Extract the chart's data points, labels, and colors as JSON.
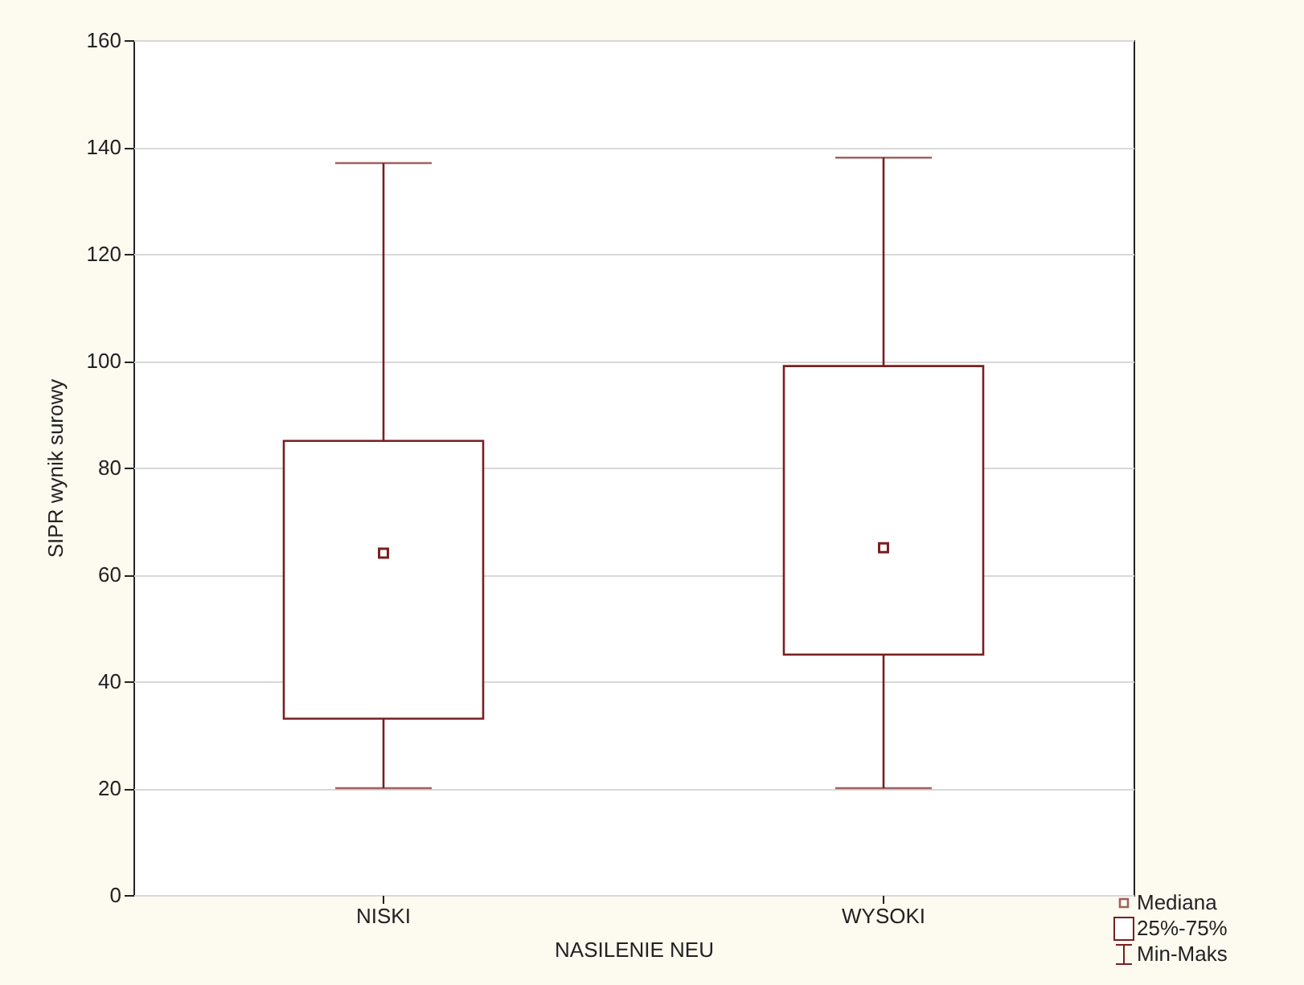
{
  "chart_data": {
    "type": "box",
    "xlabel": "NASILENIE NEU",
    "ylabel": "SIPR wynik surowy",
    "categories": [
      "NISKI",
      "WYSOKI"
    ],
    "boxes": [
      {
        "low": 20,
        "q1": 33,
        "median": 64,
        "q3": 85,
        "high": 137
      },
      {
        "low": 20,
        "q1": 45,
        "median": 65,
        "q3": 99,
        "high": 138
      }
    ],
    "color": "#7a1f1f",
    "ylim": [
      0,
      160
    ],
    "yticks": [
      0,
      20,
      40,
      60,
      80,
      100,
      120,
      140,
      160
    ],
    "grid": "y",
    "annotations": [
      "Mediana",
      "25%-75%",
      "Min-Maks"
    ]
  }
}
